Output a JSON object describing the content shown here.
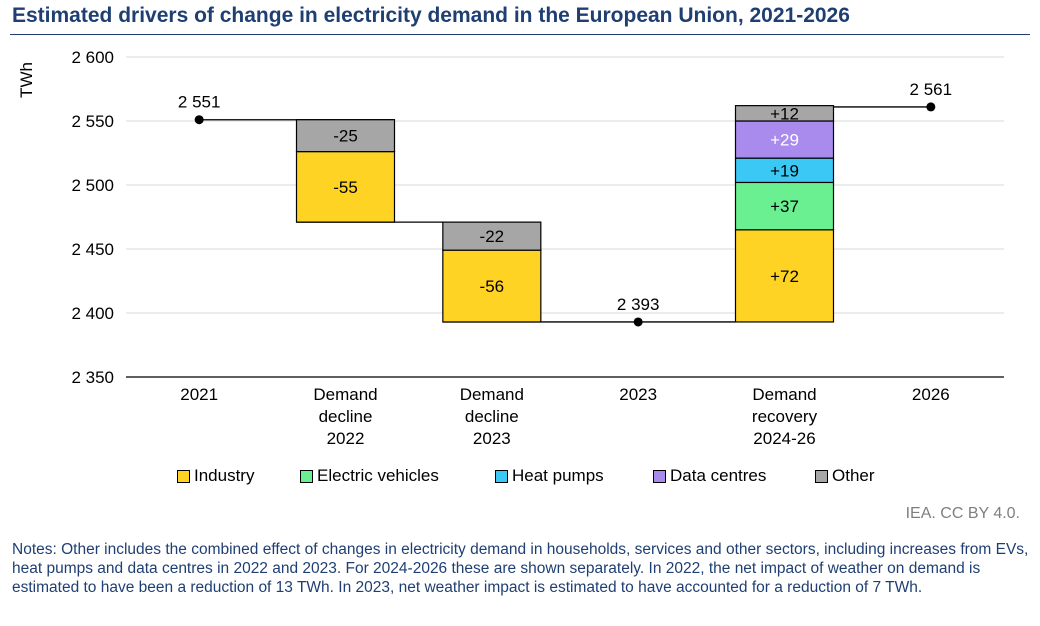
{
  "title": "Estimated drivers of change in electricity demand in the European Union, 2021-2026",
  "source": "IEA. CC BY 4.0.",
  "notes": "Notes: Other includes the combined effect of changes in electricity demand in households, services and other sectors, including increases from EVs, heat pumps and data centres in 2022 and 2023. For 2024-2026 these are shown separately. In 2022, the net impact of weather on demand is estimated to have been a reduction of 13 TWh. In 2023, net weather impact is estimated to have accounted for a reduction of 7 TWh.",
  "chart_data": {
    "type": "bar",
    "subtype": "waterfall",
    "ylabel": "TWh",
    "ylim": [
      2350,
      2600
    ],
    "yticks": [
      2350,
      2400,
      2450,
      2500,
      2550,
      2600
    ],
    "ytick_labels": [
      "2 350",
      "2 400",
      "2 450",
      "2 500",
      "2 550",
      "2 600"
    ],
    "grid": true,
    "legend_position": "bottom",
    "categories": [
      [
        "2021"
      ],
      [
        "Demand",
        "decline",
        "2022"
      ],
      [
        "Demand",
        "decline",
        "2023"
      ],
      [
        "2023"
      ],
      [
        "Demand",
        "recovery",
        "2024-26"
      ],
      [
        "2026"
      ]
    ],
    "totals": [
      {
        "index": 0,
        "value": 2551,
        "label": "2 551"
      },
      {
        "index": 3,
        "value": 2393,
        "label": "2 393"
      },
      {
        "index": 5,
        "value": 2561,
        "label": "2 561"
      }
    ],
    "changes": [
      {
        "index": 1,
        "start": 2551,
        "segments": [
          {
            "series": "Other",
            "value": -25,
            "label": "-25"
          },
          {
            "series": "Industry",
            "value": -55,
            "label": "-55"
          }
        ]
      },
      {
        "index": 2,
        "start": 2471,
        "segments": [
          {
            "series": "Other",
            "value": -22,
            "label": "-22"
          },
          {
            "series": "Industry",
            "value": -56,
            "label": "-56"
          }
        ]
      },
      {
        "index": 4,
        "start": 2393,
        "segments": [
          {
            "series": "Industry",
            "value": 72,
            "label": "+72"
          },
          {
            "series": "Electric vehicles",
            "value": 37,
            "label": "+37"
          },
          {
            "series": "Heat pumps",
            "value": 19,
            "label": "+19"
          },
          {
            "series": "Data centres",
            "value": 29,
            "label": "+29"
          },
          {
            "series": "Other",
            "value": 12,
            "label": "+12"
          }
        ]
      }
    ],
    "series": [
      {
        "name": "Industry",
        "color": "#ffd324"
      },
      {
        "name": "Electric vehicles",
        "color": "#6af090"
      },
      {
        "name": "Heat pumps",
        "color": "#3cc8f4"
      },
      {
        "name": "Data centres",
        "color": "#a98aed"
      },
      {
        "name": "Other",
        "color": "#a6a6a6"
      }
    ],
    "label_colors": {
      "Data centres": "#ffffff"
    }
  }
}
